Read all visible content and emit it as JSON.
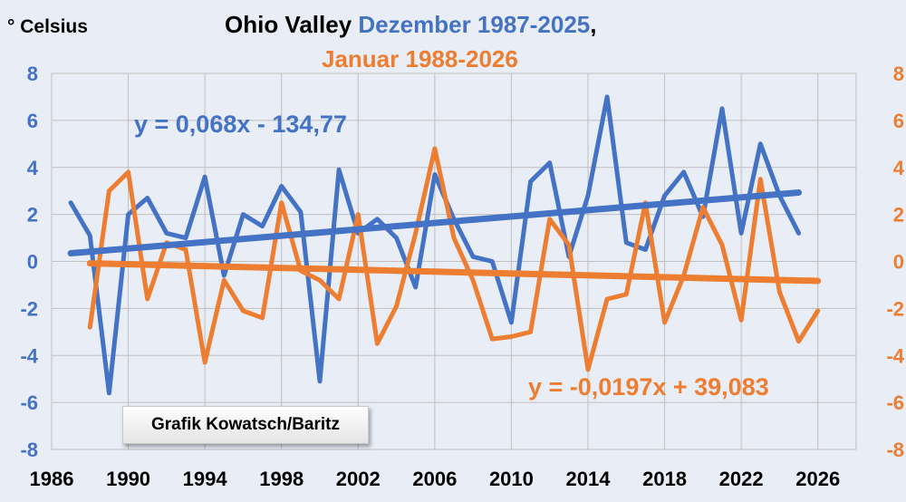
{
  "chart_data": {
    "type": "line",
    "unit_label": "° Celsius",
    "title_parts": {
      "region": "Ohio Valley",
      "series1": "Dezember 1987-2025",
      "comma": ",",
      "series2": "Januar 1988-2026"
    },
    "colors": {
      "series1": "#4472c4",
      "series2": "#ed7d31"
    },
    "xlim": [
      1986,
      2028
    ],
    "x_ticks": [
      1986,
      1990,
      1994,
      1998,
      2002,
      2006,
      2010,
      2014,
      2018,
      2022,
      2026
    ],
    "ylim": [
      -8,
      8
    ],
    "y_ticks": [
      8,
      6,
      4,
      2,
      0,
      -2,
      -4,
      -6,
      -8
    ],
    "grid": "vertical-and-horizontal",
    "series": [
      {
        "x": [
          1987,
          1988,
          1989,
          1990,
          1991,
          1992,
          1993,
          1994,
          1995,
          1996,
          1997,
          1998,
          1999,
          2000,
          2001,
          2002,
          2003,
          2004,
          2005,
          2006,
          2007,
          2008,
          2009,
          2010,
          2011,
          2012,
          2013,
          2014,
          2015,
          2016,
          2017,
          2018,
          2019,
          2020,
          2021,
          2022,
          2023,
          2024,
          2025
        ],
        "values": [
          2.5,
          1.1,
          -5.6,
          2.0,
          2.7,
          1.2,
          1.0,
          3.6,
          -0.6,
          2.0,
          1.5,
          3.2,
          2.1,
          -5.1,
          3.9,
          1.2,
          1.8,
          1.0,
          -1.1,
          3.7,
          1.8,
          0.2,
          0.0,
          -2.6,
          3.4,
          4.2,
          0.2,
          2.8,
          7.0,
          0.8,
          0.5,
          2.8,
          3.8,
          1.9,
          6.5,
          1.2,
          5.0,
          2.8,
          1.2
        ],
        "trend": {
          "slope": 0.068,
          "intercept": -134.77,
          "equation": "y = 0,068x - 134,77"
        }
      },
      {
        "x": [
          1988,
          1989,
          1990,
          1991,
          1992,
          1993,
          1994,
          1995,
          1996,
          1997,
          1998,
          1999,
          2000,
          2001,
          2002,
          2003,
          2004,
          2005,
          2006,
          2007,
          2008,
          2009,
          2010,
          2011,
          2012,
          2013,
          2014,
          2015,
          2016,
          2017,
          2018,
          2019,
          2020,
          2021,
          2022,
          2023,
          2024,
          2025,
          2026
        ],
        "values": [
          -2.8,
          3.0,
          3.8,
          -1.6,
          0.8,
          0.5,
          -4.3,
          -0.8,
          -2.1,
          -2.4,
          2.5,
          -0.4,
          -0.8,
          -1.6,
          2.0,
          -3.5,
          -1.9,
          1.2,
          4.8,
          1.0,
          -0.8,
          -3.3,
          -3.2,
          -3.0,
          1.8,
          0.7,
          -4.6,
          -1.6,
          -1.4,
          2.5,
          -2.6,
          -0.6,
          2.3,
          0.7,
          -2.5,
          3.5,
          -1.3,
          -3.4,
          -2.1
        ],
        "trend": {
          "slope": -0.0197,
          "intercept": 39.083,
          "equation": "y = -0,0197x + 39,083"
        }
      }
    ],
    "credit": "Grafik Kowatsch/Baritz"
  }
}
